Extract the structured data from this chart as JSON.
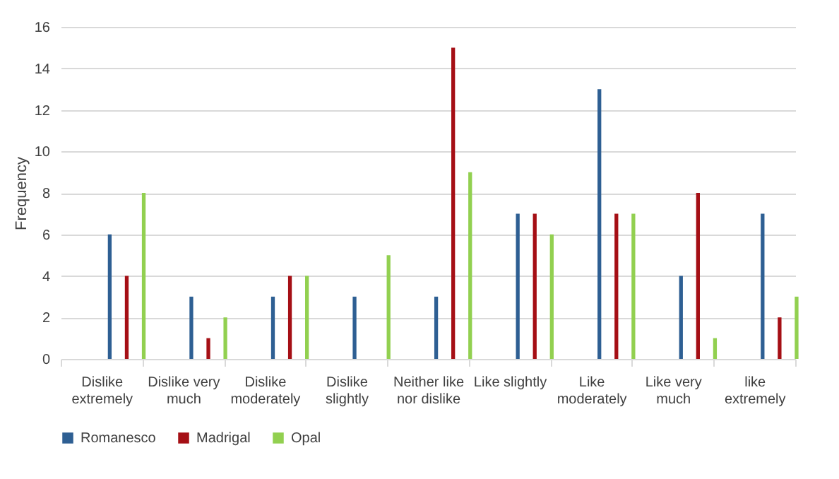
{
  "chart_data": {
    "type": "bar",
    "ylabel": "Frequency",
    "categories": [
      "Dislike extremely",
      "Dislike very much",
      "Dislike moderately",
      "Dislike slightly",
      "Neither like nor dislike",
      "Like slightly",
      "Like moderately",
      "Like very much",
      "like extremely"
    ],
    "series": [
      {
        "name": "Romanesco",
        "color": "#2e5f93",
        "values": [
          6,
          3,
          3,
          3,
          3,
          7,
          13,
          4,
          7
        ]
      },
      {
        "name": "Madrigal",
        "color": "#a50f15",
        "values": [
          4,
          1,
          4,
          0,
          15,
          7,
          7,
          8,
          2
        ]
      },
      {
        "name": "Opal",
        "color": "#92d050",
        "values": [
          8,
          2,
          4,
          5,
          9,
          6,
          7,
          1,
          3
        ]
      }
    ],
    "ylim": [
      0,
      16
    ],
    "yticks": [
      0,
      2,
      4,
      6,
      8,
      10,
      12,
      14,
      16
    ],
    "grid": "y",
    "legend": "bottom"
  }
}
